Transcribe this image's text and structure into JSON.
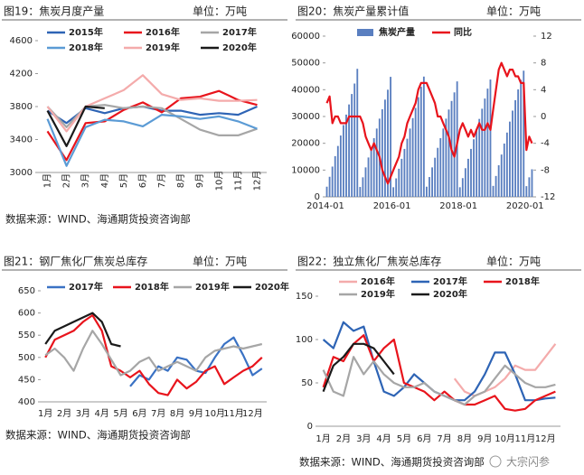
{
  "watermark": "大宗闪参",
  "chart_data": [
    {
      "type": "line",
      "title": "图19：焦炭月度产量",
      "unit": "单位：万吨",
      "source": "数据来源：WIND、海通期货投资咨询部",
      "categories": [
        "1月",
        "2月",
        "3月",
        "4月",
        "5月",
        "6月",
        "7月",
        "8月",
        "9月",
        "10月",
        "11月",
        "12月"
      ],
      "ylim": [
        3000,
        4600
      ],
      "yticks": [
        3000,
        3400,
        3800,
        4200,
        4600
      ],
      "series": [
        {
          "name": "2015年",
          "color": "#2e64b5",
          "values": [
            3750,
            3600,
            3780,
            3720,
            3780,
            3800,
            3750,
            3750,
            3700,
            3720,
            3700,
            3800
          ]
        },
        {
          "name": "2016年",
          "color": "#e8141c",
          "values": [
            3500,
            3150,
            3600,
            3620,
            3760,
            3850,
            3730,
            3900,
            3920,
            3990,
            3880,
            3820
          ]
        },
        {
          "name": "2017年",
          "color": "#a6a6a6",
          "values": [
            3800,
            3550,
            3800,
            3820,
            3780,
            3800,
            3780,
            3650,
            3520,
            3450,
            3450,
            3530
          ]
        },
        {
          "name": "2018年",
          "color": "#5b9bd5",
          "values": [
            3650,
            3080,
            3550,
            3640,
            3620,
            3560,
            3700,
            3680,
            3650,
            3680,
            3620,
            3530
          ]
        },
        {
          "name": "2019年",
          "color": "#f4abab",
          "values": [
            3800,
            3500,
            3800,
            3900,
            4000,
            4180,
            3950,
            3880,
            3900,
            3870,
            3870,
            3880
          ]
        },
        {
          "name": "2020年",
          "color": "#1a1a1a",
          "values": [
            3750,
            3320,
            3800,
            3780,
            null,
            null,
            null,
            null,
            null,
            null,
            null,
            null
          ]
        }
      ]
    },
    {
      "type": "combo",
      "title": "图20：焦炭产量累计值",
      "unit": "单位：万吨",
      "categories": [
        "2014-01",
        null,
        null,
        null,
        null,
        null,
        null,
        null,
        null,
        null,
        null,
        null,
        null,
        null,
        null,
        null,
        null,
        null,
        null,
        null,
        null,
        null,
        null,
        null,
        "2016-01",
        null,
        null,
        null,
        null,
        null,
        null,
        null,
        null,
        null,
        null,
        null,
        null,
        null,
        null,
        null,
        null,
        null,
        null,
        null,
        null,
        null,
        null,
        null,
        "2018-01",
        null,
        null,
        null,
        null,
        null,
        null,
        null,
        null,
        null,
        null,
        null,
        null,
        null,
        null,
        null,
        null,
        null,
        null,
        null,
        null,
        null,
        null,
        null,
        "2020-01",
        null,
        null
      ],
      "ylim": [
        0,
        60000
      ],
      "yticks": [
        0,
        10000,
        20000,
        30000,
        40000,
        50000,
        60000
      ],
      "y2lim": [
        -12,
        12
      ],
      "y2ticks": [
        -12,
        -8,
        -4,
        0,
        4,
        8,
        12
      ],
      "series": [
        {
          "name": "焦炭产量",
          "type": "bar",
          "color": "#5a7fc0",
          "values": [
            3800,
            7500,
            11300,
            15200,
            19000,
            22900,
            26800,
            30700,
            34500,
            38400,
            42300,
            47800,
            3700,
            7300,
            11000,
            14700,
            18300,
            21900,
            25500,
            29200,
            32700,
            36300,
            40000,
            44800,
            3600,
            6900,
            10500,
            14200,
            17900,
            21700,
            25500,
            29400,
            33200,
            37200,
            41100,
            44900,
            3800,
            7400,
            11000,
            14600,
            18300,
            21900,
            25500,
            29200,
            32600,
            35800,
            39000,
            43100,
            3600,
            7000,
            10700,
            14200,
            17900,
            21500,
            25300,
            29100,
            32900,
            36700,
            40400,
            43800,
            4100,
            7800,
            11800,
            15800,
            19900,
            24000,
            28100,
            32200,
            36100,
            40100,
            43700,
            47100,
            4000,
            7300,
            10300
          ]
        },
        {
          "name": "同比",
          "type": "line",
          "axis": "y2",
          "color": "#e8141c",
          "values": [
            2,
            3,
            -1,
            0,
            0,
            -1,
            -1,
            -1,
            0,
            0,
            0,
            0,
            0,
            -1,
            -3,
            -4,
            -5,
            -4,
            -5,
            -6,
            -8,
            -9,
            -10,
            -9,
            -8,
            -7,
            -6,
            -4,
            -3,
            -1,
            0,
            1,
            2,
            4,
            5,
            5,
            5,
            4,
            3,
            2,
            0,
            0,
            -1,
            -2,
            -3,
            -5,
            -6,
            -4,
            -2,
            -1,
            -2,
            -3,
            -2,
            -3,
            -2,
            -1,
            -2,
            -2,
            -1,
            -2,
            1,
            4,
            7,
            8,
            7,
            6,
            7,
            7,
            6,
            6,
            5,
            5,
            -5,
            -3,
            -4
          ]
        }
      ]
    },
    {
      "type": "line",
      "title": "图21：钢厂焦化厂焦炭总库存",
      "unit": "单位：万吨",
      "source": "数据来源：WIND、海通期货投资咨询部",
      "categories": [
        "1月",
        null,
        "2月",
        null,
        "3月",
        null,
        "4月",
        null,
        "5月",
        null,
        "6月",
        null,
        "7月",
        null,
        "8月",
        null,
        "9月",
        null,
        "10月",
        null,
        "11月",
        null,
        "12月",
        null
      ],
      "ylim": [
        400,
        650
      ],
      "yticks": [
        400,
        450,
        500,
        550,
        600,
        650
      ],
      "series": [
        {
          "name": "2017年",
          "color": "#3a72c4",
          "values": [
            null,
            null,
            null,
            null,
            null,
            null,
            null,
            null,
            null,
            435,
            460,
            450,
            480,
            470,
            500,
            495,
            470,
            465,
            500,
            530,
            545,
            505,
            460,
            475
          ]
        },
        {
          "name": "2018年",
          "color": "#e8141c",
          "values": [
            500,
            540,
            550,
            560,
            580,
            595,
            560,
            480,
            470,
            455,
            470,
            440,
            420,
            415,
            450,
            430,
            445,
            470,
            480,
            440,
            455,
            470,
            480,
            500
          ]
        },
        {
          "name": "2019年",
          "color": "#a6a6a6",
          "values": [
            505,
            520,
            500,
            470,
            520,
            560,
            530,
            495,
            460,
            470,
            490,
            500,
            470,
            480,
            490,
            480,
            470,
            500,
            515,
            520,
            525,
            520,
            525,
            530
          ]
        },
        {
          "name": "2020年",
          "color": "#1a1a1a",
          "values": [
            530,
            560,
            570,
            580,
            590,
            600,
            580,
            530,
            525,
            null,
            null,
            null,
            null,
            null,
            null,
            null,
            null,
            null,
            null,
            null,
            null,
            null,
            null,
            null
          ]
        }
      ]
    },
    {
      "type": "line",
      "title": "图22：独立焦化厂焦炭总库存",
      "unit": "单位：万吨",
      "source": "数据来源：WIND、海通期货投资咨询部",
      "categories": [
        "1月",
        null,
        "2月",
        null,
        "3月",
        null,
        "4月",
        null,
        "5月",
        null,
        "6月",
        null,
        "7月",
        null,
        "8月",
        null,
        "9月",
        null,
        "10月",
        null,
        "11月",
        null,
        "12月",
        null
      ],
      "ylim": [
        0,
        150
      ],
      "yticks": [
        0,
        50,
        100,
        150
      ],
      "series": [
        {
          "name": "2016年",
          "color": "#f4abab",
          "values": [
            null,
            null,
            null,
            null,
            null,
            null,
            null,
            null,
            null,
            null,
            null,
            null,
            null,
            55,
            40,
            35,
            40,
            45,
            55,
            70,
            65,
            65,
            80,
            95
          ]
        },
        {
          "name": "2017年",
          "color": "#2e64b5",
          "values": [
            100,
            90,
            120,
            110,
            115,
            75,
            40,
            35,
            45,
            60,
            50,
            40,
            35,
            30,
            30,
            40,
            60,
            85,
            85,
            60,
            30,
            30,
            32,
            33
          ]
        },
        {
          "name": "2018年",
          "color": "#e8141c",
          "values": [
            45,
            80,
            75,
            95,
            105,
            75,
            90,
            100,
            50,
            45,
            40,
            30,
            40,
            30,
            25,
            25,
            30,
            35,
            20,
            18,
            20,
            30,
            35,
            40
          ]
        },
        {
          "name": "2019年",
          "color": "#a6a6a6",
          "values": [
            65,
            40,
            35,
            80,
            60,
            75,
            60,
            50,
            45,
            45,
            50,
            40,
            35,
            30,
            25,
            35,
            40,
            55,
            70,
            60,
            50,
            45,
            45,
            48
          ]
        },
        {
          "name": "2020年",
          "color": "#1a1a1a",
          "values": [
            40,
            70,
            80,
            95,
            95,
            90,
            75,
            60,
            null,
            null,
            null,
            null,
            null,
            null,
            null,
            null,
            null,
            null,
            null,
            null,
            null,
            null,
            null,
            null
          ]
        }
      ]
    }
  ]
}
